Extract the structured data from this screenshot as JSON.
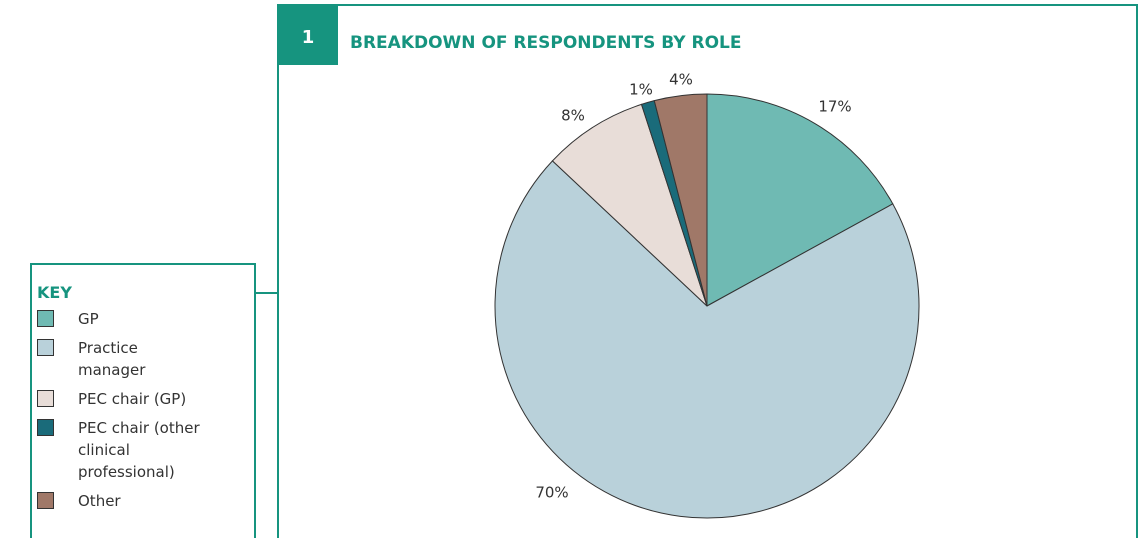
{
  "chart_data": {
    "type": "pie",
    "number": "1",
    "title": "BREAKDOWN OF RESPONDENTS BY ROLE",
    "legend_title": "KEY",
    "categories": [
      "GP",
      "Practice manager",
      "PEC chair (GP)",
      "PEC chair (other clinical professional)",
      "Other"
    ],
    "values": [
      17,
      70,
      8,
      1,
      4
    ],
    "value_labels": [
      "17%",
      "70%",
      "8%",
      "1%",
      "4%"
    ],
    "colors": [
      "#6fbab3",
      "#b9d1da",
      "#e8ddd8",
      "#1a6b7a",
      "#a07868"
    ]
  }
}
